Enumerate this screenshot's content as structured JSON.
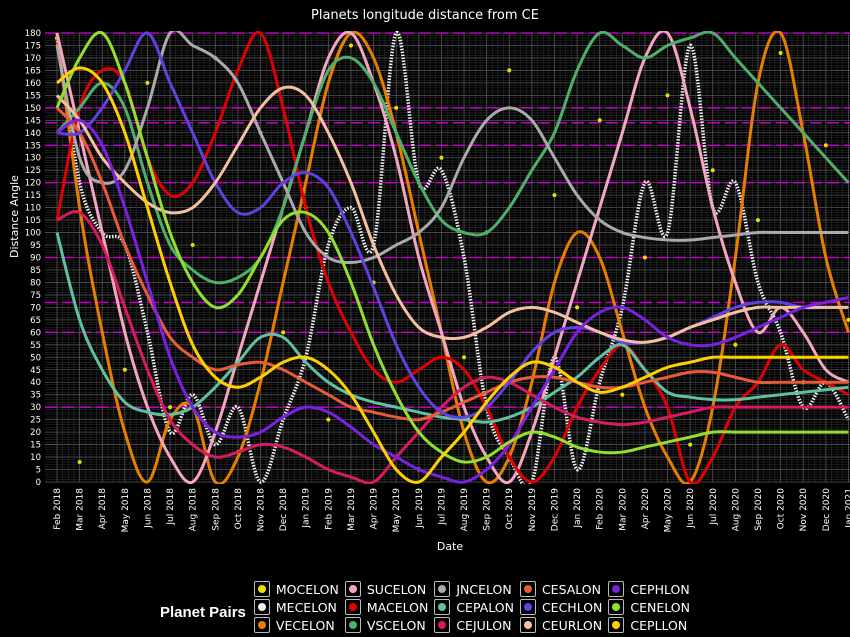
{
  "chart_data": {
    "type": "line",
    "title": "Planets longitude distance from CE",
    "xlabel": "Date",
    "ylabel": "Distance Angle",
    "ylim": [
      0,
      180
    ],
    "y_tick_step": 5,
    "x_tick_labels": [
      "Feb 2018",
      "Mar 2018",
      "Apr 2018",
      "May 2018",
      "Jun 2018",
      "Jul 2018",
      "Aug 2018",
      "Sep 2018",
      "Oct 2018",
      "Nov 2018",
      "Dec 2018",
      "Jan 2019",
      "Feb 2019",
      "Mar 2019",
      "Apr 2019",
      "May 2019",
      "Jun 2019",
      "Jul 2019",
      "Aug 2019",
      "Sep 2019",
      "Oct 2019",
      "Nov 2019",
      "Dec 2019",
      "Jan 2020",
      "Feb 2020",
      "Mar 2020",
      "Apr 2020",
      "May 2020",
      "Jun 2020",
      "Jul 2020",
      "Aug 2020",
      "Sep 2020",
      "Oct 2020",
      "Nov 2020",
      "Dec 2020",
      "Jan 2021"
    ],
    "grid": true,
    "legend_position": "bottom",
    "legend_title": "Planet Pairs",
    "series": [
      {
        "name": "MOCELON",
        "color": "#e8e000",
        "style": "scatter",
        "values": [
          178,
          8,
          120,
          45,
          160,
          30,
          95,
          170,
          12,
          140,
          60,
          110,
          25,
          175,
          80,
          150,
          5,
          130,
          50,
          100,
          165,
          20,
          115,
          70,
          145,
          35,
          90,
          155,
          15,
          125,
          55,
          105,
          172,
          40,
          135,
          65
        ]
      },
      {
        "name": "MECELON",
        "color": "#f5f5f5",
        "style": "dots",
        "values": [
          178,
          120,
          100,
          95,
          60,
          20,
          35,
          15,
          30,
          0,
          25,
          50,
          95,
          110,
          95,
          180,
          120,
          125,
          90,
          30,
          10,
          0,
          50,
          5,
          40,
          70,
          120,
          100,
          175,
          110,
          120,
          80,
          60,
          30,
          40,
          25
        ]
      },
      {
        "name": "VECELON",
        "color": "#e67e00",
        "values": [
          180,
          110,
          60,
          20,
          0,
          25,
          30,
          0,
          10,
          40,
          80,
          120,
          160,
          180,
          170,
          140,
          100,
          60,
          20,
          0,
          10,
          40,
          80,
          100,
          90,
          60,
          30,
          10,
          0,
          30,
          90,
          160,
          180,
          140,
          90,
          60
        ]
      },
      {
        "name": "SUCELON",
        "color": "#f4a6c0",
        "values": [
          180,
          140,
          100,
          60,
          30,
          10,
          0,
          20,
          50,
          80,
          110,
          140,
          170,
          180,
          160,
          130,
          90,
          60,
          30,
          10,
          0,
          20,
          50,
          80,
          110,
          140,
          170,
          180,
          150,
          110,
          80,
          60,
          70,
          60,
          45,
          40
        ]
      },
      {
        "name": "MACELON",
        "color": "#e00000",
        "values": [
          105,
          150,
          165,
          160,
          130,
          115,
          120,
          140,
          165,
          180,
          150,
          110,
          80,
          60,
          45,
          40,
          45,
          50,
          45,
          30,
          10,
          0,
          10,
          30,
          45,
          55,
          45,
          30,
          0,
          10,
          30,
          40,
          55,
          45,
          40,
          35
        ]
      },
      {
        "name": "VSCELON",
        "color": "#4daf6a",
        "values": [
          140,
          150,
          160,
          150,
          120,
          95,
          85,
          80,
          82,
          90,
          110,
          140,
          165,
          170,
          160,
          140,
          120,
          105,
          100,
          100,
          110,
          125,
          140,
          165,
          180,
          175,
          170,
          175,
          178,
          180,
          170,
          160,
          150,
          140,
          130,
          120
        ]
      },
      {
        "name": "JNCELON",
        "color": "#aaaaaa",
        "values": [
          175,
          130,
          120,
          125,
          150,
          180,
          175,
          170,
          160,
          140,
          120,
          100,
          90,
          88,
          90,
          95,
          100,
          110,
          130,
          145,
          150,
          145,
          130,
          115,
          105,
          100,
          98,
          97,
          97,
          98,
          99,
          100,
          100,
          100,
          100,
          100
        ]
      },
      {
        "name": "CEPALON",
        "color": "#5fc1a0",
        "values": [
          100,
          65,
          45,
          32,
          28,
          27,
          30,
          38,
          48,
          58,
          58,
          48,
          40,
          35,
          32,
          30,
          28,
          26,
          25,
          24,
          26,
          30,
          36,
          42,
          50,
          55,
          45,
          36,
          34,
          33,
          33,
          34,
          35,
          36,
          37,
          38
        ]
      },
      {
        "name": "CEJULON",
        "color": "#d81b60",
        "values": [
          105,
          108,
          95,
          70,
          45,
          25,
          15,
          10,
          12,
          15,
          14,
          10,
          5,
          2,
          0,
          10,
          20,
          30,
          38,
          42,
          40,
          35,
          30,
          26,
          24,
          23,
          24,
          26,
          28,
          30,
          30,
          30,
          30,
          30,
          30,
          30
        ]
      },
      {
        "name": "CESALON",
        "color": "#e85a3a",
        "values": [
          150,
          140,
          120,
          95,
          75,
          58,
          50,
          45,
          47,
          48,
          45,
          40,
          35,
          30,
          28,
          26,
          25,
          28,
          32,
          36,
          40,
          42,
          42,
          40,
          38,
          38,
          40,
          42,
          44,
          44,
          42,
          40,
          40,
          40,
          40,
          40
        ]
      },
      {
        "name": "CECHLON",
        "color": "#6040e0",
        "values": [
          140,
          140,
          150,
          165,
          180,
          160,
          140,
          120,
          108,
          110,
          120,
          124,
          118,
          100,
          78,
          55,
          38,
          28,
          26,
          30,
          40,
          52,
          60,
          62,
          60,
          56,
          56,
          58,
          62,
          66,
          70,
          72,
          72,
          70,
          70,
          70
        ]
      },
      {
        "name": "CEURLON",
        "color": "#f5c0a0",
        "values": [
          155,
          145,
          130,
          120,
          112,
          108,
          110,
          120,
          135,
          150,
          158,
          155,
          140,
          120,
          95,
          75,
          62,
          58,
          58,
          62,
          68,
          70,
          68,
          64,
          60,
          57,
          56,
          58,
          62,
          65,
          68,
          70,
          70,
          70,
          70,
          70
        ]
      },
      {
        "name": "CEPHLON",
        "color": "#7a20e0",
        "values": [
          140,
          145,
          135,
          110,
          80,
          50,
          30,
          20,
          18,
          20,
          26,
          30,
          28,
          22,
          15,
          10,
          5,
          2,
          0,
          5,
          15,
          30,
          45,
          60,
          68,
          70,
          65,
          58,
          55,
          55,
          58,
          62,
          66,
          70,
          72,
          74
        ]
      },
      {
        "name": "CENELON",
        "color": "#90e030",
        "values": [
          150,
          170,
          180,
          160,
          130,
          100,
          80,
          70,
          75,
          90,
          105,
          108,
          100,
          80,
          55,
          35,
          20,
          12,
          8,
          10,
          16,
          20,
          18,
          14,
          12,
          12,
          14,
          16,
          18,
          20,
          20,
          20,
          20,
          20,
          20,
          20
        ]
      },
      {
        "name": "CEPLLON",
        "color": "#ffd000",
        "values": [
          160,
          166,
          160,
          140,
          110,
          80,
          55,
          42,
          38,
          42,
          48,
          50,
          45,
          35,
          20,
          5,
          0,
          10,
          20,
          32,
          42,
          48,
          46,
          40,
          36,
          38,
          42,
          46,
          48,
          50,
          50,
          50,
          50,
          50,
          50,
          50
        ]
      }
    ]
  }
}
